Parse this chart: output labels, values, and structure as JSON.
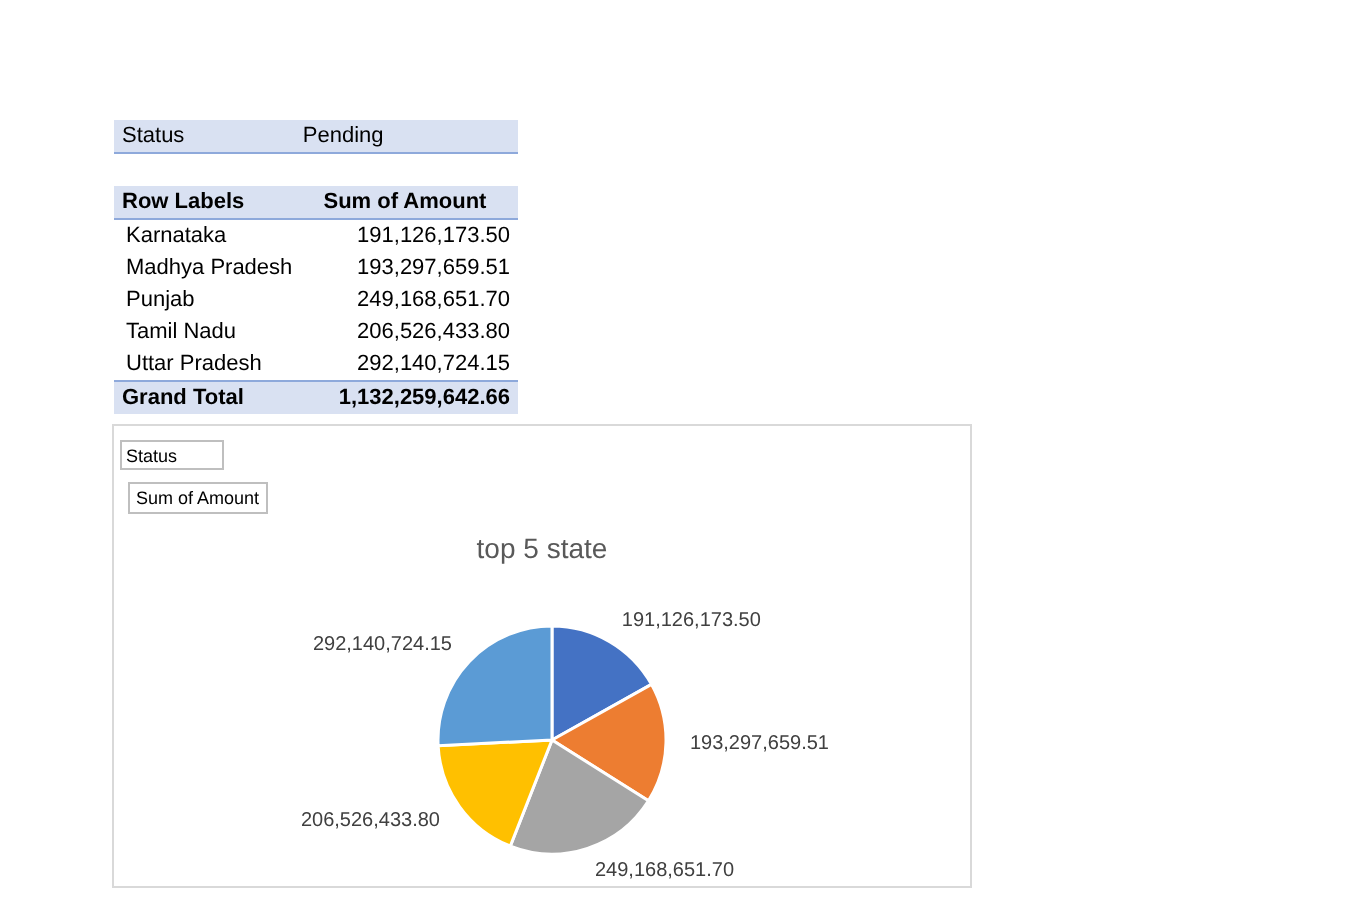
{
  "chart_data": {
    "type": "pie",
    "title": "top 5 state",
    "categories": [
      null,
      null,
      null,
      null,
      null
    ],
    "values": [
      191126173.5,
      193297659.51,
      249168651.7,
      206526433.8,
      292140724.15
    ],
    "value_labels": [
      "191,126,173.50",
      "193,297,659.51",
      "249,168,651.70",
      "206,526,433.80",
      "292,140,724.15"
    ],
    "colors": [
      "#4472c4",
      "#ed7d31",
      "#a5a5a5",
      "#ffc000",
      "#5b9bd5"
    ],
    "legend": false,
    "annotations": [
      "Status",
      "Pending",
      "Row Labels",
      "Sum of Amount",
      "Grand Total",
      "1,132,259,642.66",
      "Status",
      "Sum of Amount",
      "Karnataka",
      "Madhya Pradesh",
      "Punjab",
      "Tamil Nadu",
      "Uttar Pradesh"
    ]
  }
}
